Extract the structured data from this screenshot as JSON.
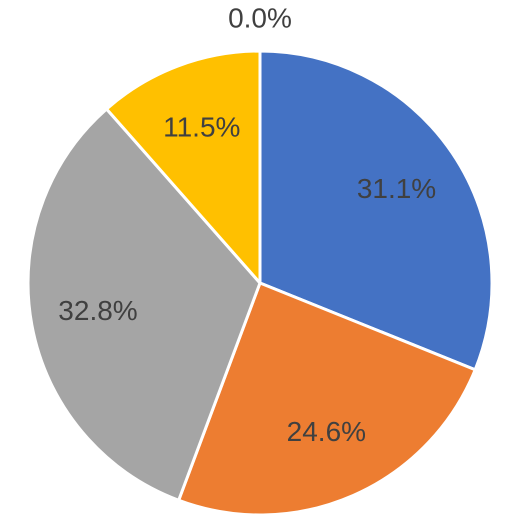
{
  "chart_data": {
    "type": "pie",
    "categories": [
      null,
      null,
      null,
      null,
      null
    ],
    "values": [
      31.1,
      24.6,
      32.8,
      11.5,
      0.0
    ],
    "value_labels": [
      "31.1%",
      "24.6%",
      "32.8%",
      "11.5%",
      "0.0%"
    ],
    "colors": [
      "#4472c4",
      "#ed7d31",
      "#a5a5a5",
      "#ffc000",
      "#5b9bd5"
    ]
  }
}
